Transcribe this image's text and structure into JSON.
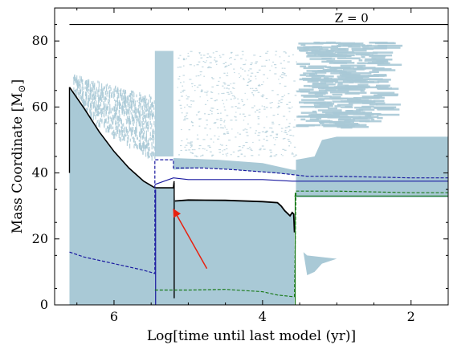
{
  "chart_data": {
    "type": "area",
    "annotation": "Z = 0",
    "xlabel": "Log[time until last model (yr)]",
    "ylabel_main": "Mass Coordinate [M",
    "ylabel_sub": "⊙",
    "ylabel_end": "]",
    "x_reversed": true,
    "xlim": [
      6.8,
      1.5
    ],
    "ylim": [
      0,
      90
    ],
    "xticks": [
      6,
      4,
      2
    ],
    "yticks": [
      0,
      20,
      40,
      60,
      80
    ],
    "total_mass": 85,
    "colors": {
      "convective": "#a9c9d6",
      "stellar_mass": "#000000",
      "hydrogen_free_core": "#1a1aa0",
      "helium_free_core": "#1a7a1a",
      "arrow": "#e8200f"
    },
    "mass_loss_curve": {
      "x": [
        6.6,
        6.4,
        6.2,
        6.0,
        5.8,
        5.6,
        5.45,
        5.3,
        5.2,
        5.19
      ],
      "y": [
        66,
        59.5,
        52.5,
        46.5,
        41.5,
        37.5,
        35.5,
        35.5,
        35.5,
        37.5
      ]
    },
    "core_mass_curve": {
      "x": [
        5.18,
        5.0,
        4.5,
        4.0,
        3.8,
        3.75,
        3.7,
        3.63,
        3.6,
        3.58,
        3.57
      ],
      "y": [
        31.5,
        31.8,
        31.7,
        31.3,
        31.0,
        30.0,
        28.5,
        27.0,
        28.0,
        27.5,
        22.0
      ]
    },
    "h_free_core_solid": {
      "x": [
        5.45,
        5.2,
        5.0,
        4.5,
        4.0,
        3.6,
        3.0,
        2.0,
        1.5
      ],
      "y": [
        36.5,
        38.5,
        38.0,
        38.0,
        38.0,
        37.5,
        37.5,
        37.5,
        37.5
      ]
    },
    "h_free_core_dashed": {
      "x": [
        6.6,
        6.4,
        6.2,
        6.0,
        5.8,
        5.6,
        5.45,
        5.45,
        5.2,
        5.2,
        4.8,
        4.4,
        4.1,
        3.8,
        3.6,
        3.4,
        3.0,
        2.0,
        1.5
      ],
      "y": [
        16,
        14.5,
        13.5,
        12.5,
        11.5,
        10.5,
        9.5,
        44,
        44,
        41.5,
        41.5,
        41.0,
        40.5,
        40.0,
        39.5,
        39.0,
        39.0,
        38.5,
        38.5
      ]
    },
    "he_free_core_solid": {
      "x": [
        3.57,
        3.5,
        3.0,
        2.0,
        1.5
      ],
      "y": [
        33,
        33,
        33,
        33,
        33
      ]
    },
    "he_free_core_dashed": {
      "x": [
        5.45,
        5.2,
        5.0,
        4.5,
        4.0,
        3.8,
        3.6,
        3.57,
        3.55,
        3.0,
        2.0,
        1.5
      ],
      "y": [
        4.5,
        4.5,
        4.5,
        4.7,
        4.0,
        3.0,
        2.5,
        2.5,
        34.5,
        34.5,
        34.0,
        34.0
      ]
    },
    "arrow": {
      "from": [
        4.75,
        11
      ],
      "to": [
        5.2,
        29
      ]
    }
  }
}
